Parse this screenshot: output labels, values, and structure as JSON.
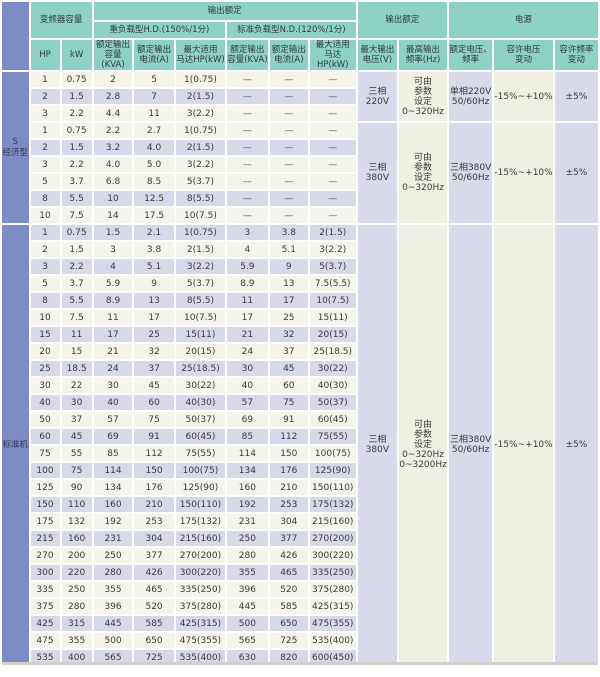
{
  "colors": {
    "header_teal": "#8ed1c5",
    "section_blue": "#7d8cc4",
    "stripe_purple": "#d7d8e9",
    "stripe_cream": "#f5f4ea",
    "merged_purple": "#d8d9ea",
    "merged_cream": "#f0efe3"
  },
  "table": {
    "header": {
      "capacity_group": "变频器容量",
      "output_rating_group": "输出额定",
      "hd_group": "重负载型H.D.(150%/1分)",
      "nd_group": "标准负载型N.D.(120%/1分)",
      "output_rating2_group": "输出额定",
      "power_group": "电源",
      "col_hp": "HP",
      "col_kw": "kW",
      "col_kva": "额定输出\n容量(KVA)",
      "col_amp": "额定输出\n电流(A)",
      "col_motor": "最大适用\n马达HP(kW)",
      "col_max_voltage": "最大输出\n电压(V)",
      "col_max_freq": "最高输出\n频率(Hz)",
      "col_rated_voltage_freq": "额定电压、\n频率",
      "col_voltage_tolerance": "容许电压\n变动",
      "col_freq_tolerance": "容许频率\n变动"
    },
    "sections": [
      {
        "label": "S\n经济型",
        "groups": [
          {
            "volt": "三相\n220V",
            "freq": "可由\n参数\n设定\n0~320Hz",
            "supply": "单相220V\n50/60Hz",
            "v_tol": "-15%~+10%",
            "f_tol": "±5%",
            "stripes": [
              "w",
              "p",
              "w"
            ],
            "rows": [
              [
                "1",
                "0.75",
                "2",
                "5",
                "1(0.75)",
                "—",
                "—",
                "—"
              ],
              [
                "2",
                "1.5",
                "2.8",
                "7",
                "2(1.5)",
                "—",
                "—",
                "—"
              ],
              [
                "3",
                "2.2",
                "4.4",
                "11",
                "3(2.2)",
                "—",
                "—",
                "—"
              ]
            ]
          },
          {
            "volt": "三相\n380V",
            "freq": "可由\n参数\n设定\n0~320Hz",
            "supply": "三相380V\n50/60Hz",
            "v_tol": "-15%~+10%",
            "f_tol": "±5%",
            "stripes": [
              "w",
              "p",
              "w",
              "w",
              "p",
              "w"
            ],
            "rows": [
              [
                "1",
                "0.75",
                "2.2",
                "2.7",
                "1(0.75)",
                "—",
                "—",
                "—"
              ],
              [
                "2",
                "1.5",
                "3.2",
                "4.0",
                "2(1.5)",
                "—",
                "—",
                "—"
              ],
              [
                "3",
                "2.2",
                "4.0",
                "5.0",
                "3(2.2)",
                "—",
                "—",
                "—"
              ],
              [
                "5",
                "3.7",
                "6.8",
                "8.5",
                "5(3.7)",
                "—",
                "—",
                "—"
              ],
              [
                "8",
                "5.5",
                "10",
                "12.5",
                "8(5.5)",
                "—",
                "—",
                "—"
              ],
              [
                "10",
                "7.5",
                "14",
                "17.5",
                "10(7.5)",
                "—",
                "—",
                "—"
              ]
            ]
          }
        ]
      },
      {
        "label": "标准机",
        "groups": [
          {
            "volt": "三相\n380V",
            "freq": "可由\n参数\n设定\n0~320Hz\n0~3200Hz",
            "supply": "三相380V\n50/60Hz",
            "v_tol": "-15%~+10%",
            "f_tol": "±5%",
            "stripes": [
              "p",
              "w",
              "p",
              "w",
              "p",
              "w",
              "p",
              "w",
              "p",
              "w",
              "p",
              "w",
              "p",
              "w",
              "p",
              "w",
              "p",
              "w",
              "p",
              "w",
              "p",
              "w",
              "w",
              "p",
              "w",
              "p"
            ],
            "rows": [
              [
                "1",
                "0.75",
                "1.5",
                "2.1",
                "1(0.75)",
                "3",
                "3.8",
                "2(1.5)"
              ],
              [
                "2",
                "1.5",
                "3",
                "3.8",
                "2(1.5)",
                "4",
                "5.1",
                "3(2.2)"
              ],
              [
                "3",
                "2.2",
                "4",
                "5.1",
                "3(2.2)",
                "5.9",
                "9",
                "5(3.7)"
              ],
              [
                "5",
                "3.7",
                "5.9",
                "9",
                "5(3.7)",
                "8.9",
                "13",
                "7.5(5.5)"
              ],
              [
                "8",
                "5.5",
                "8.9",
                "13",
                "8(5.5)",
                "11",
                "17",
                "10(7.5)"
              ],
              [
                "10",
                "7.5",
                "11",
                "17",
                "10(7.5)",
                "17",
                "25",
                "15(11)"
              ],
              [
                "15",
                "11",
                "17",
                "25",
                "15(11)",
                "21",
                "32",
                "20(15)"
              ],
              [
                "20",
                "15",
                "21",
                "32",
                "20(15)",
                "24",
                "37",
                "25(18.5)"
              ],
              [
                "25",
                "18.5",
                "24",
                "37",
                "25(18.5)",
                "30",
                "45",
                "30(22)"
              ],
              [
                "30",
                "22",
                "30",
                "45",
                "30(22)",
                "40",
                "60",
                "40(30)"
              ],
              [
                "40",
                "30",
                "40",
                "60",
                "40(30)",
                "57",
                "75",
                "50(37)"
              ],
              [
                "50",
                "37",
                "57",
                "75",
                "50(37)",
                "69",
                "91",
                "60(45)"
              ],
              [
                "60",
                "45",
                "69",
                "91",
                "60(45)",
                "85",
                "112",
                "75(55)"
              ],
              [
                "75",
                "55",
                "85",
                "112",
                "75(55)",
                "114",
                "150",
                "100(75)"
              ],
              [
                "100",
                "75",
                "114",
                "150",
                "100(75)",
                "134",
                "176",
                "125(90)"
              ],
              [
                "125",
                "90",
                "134",
                "176",
                "125(90)",
                "160",
                "210",
                "150(110)"
              ],
              [
                "150",
                "110",
                "160",
                "210",
                "150(110)",
                "192",
                "253",
                "175(132)"
              ],
              [
                "175",
                "132",
                "192",
                "253",
                "175(132)",
                "231",
                "304",
                "215(160)"
              ],
              [
                "215",
                "160",
                "231",
                "304",
                "215(160)",
                "250",
                "377",
                "270(200)"
              ],
              [
                "270",
                "200",
                "250",
                "377",
                "270(200)",
                "280",
                "426",
                "300(220)"
              ],
              [
                "300",
                "220",
                "280",
                "426",
                "300(220)",
                "355",
                "465",
                "335(250)"
              ],
              [
                "335",
                "250",
                "355",
                "465",
                "335(250)",
                "396",
                "520",
                "375(280)"
              ],
              [
                "375",
                "280",
                "396",
                "520",
                "375(280)",
                "445",
                "585",
                "425(315)"
              ],
              [
                "425",
                "315",
                "445",
                "585",
                "425(315)",
                "500",
                "650",
                "475(355)"
              ],
              [
                "475",
                "355",
                "500",
                "650",
                "475(355)",
                "565",
                "725",
                "535(400)"
              ],
              [
                "535",
                "400",
                "565",
                "725",
                "535(400)",
                "630",
                "820",
                "600(450)"
              ]
            ]
          }
        ]
      }
    ]
  }
}
